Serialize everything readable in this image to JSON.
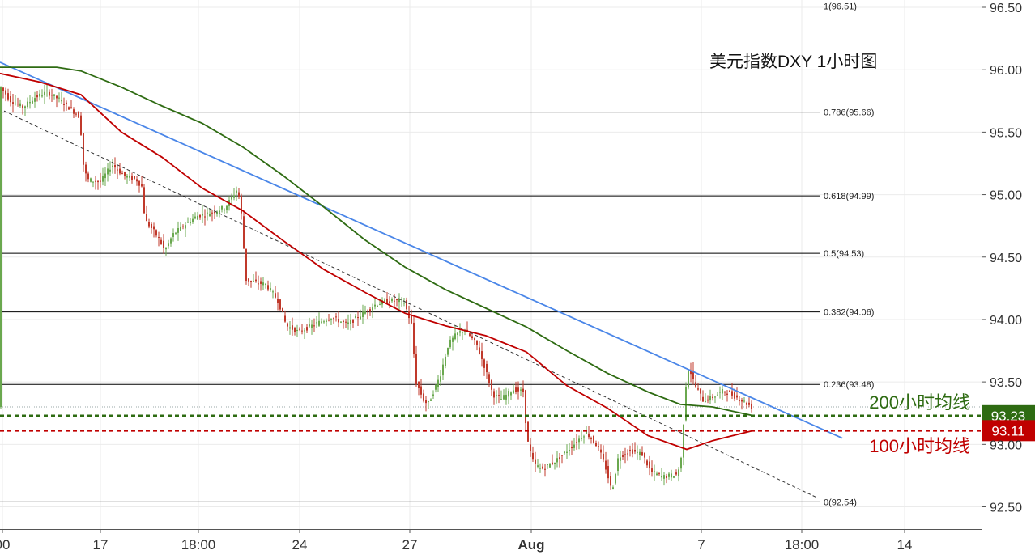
{
  "chart_data": {
    "type": "candlestick",
    "title": "美元指数DXY 1小时图",
    "ylim": [
      92.43,
      96.55
    ],
    "y_ticks": [
      "92.50",
      "93.00",
      "93.50",
      "94.00",
      "94.50",
      "95.00",
      "95.50",
      "96.00",
      "96.50"
    ],
    "x_ticks": [
      "00",
      "17",
      "18:00",
      "24",
      "27",
      "Aug",
      "7",
      "18:00",
      "14"
    ],
    "grid": true,
    "fibonacci_levels": [
      {
        "label": "1(96.51)",
        "value": 96.51
      },
      {
        "label": "0.786(95.66)",
        "value": 95.66
      },
      {
        "label": "0.618(94.99)",
        "value": 94.99
      },
      {
        "label": "0.5(94.53)",
        "value": 94.53
      },
      {
        "label": "0.382(94.06)",
        "value": 94.06
      },
      {
        "label": "0.236(93.48)",
        "value": 93.48
      },
      {
        "label": "0(92.54)",
        "value": 92.54
      }
    ],
    "moving_averages": [
      {
        "name": "200小时均线",
        "price_tag": "93.23",
        "value": 93.23,
        "color": "#2e6b12"
      },
      {
        "name": "100小时均线",
        "price_tag": "93.11",
        "value": 93.11,
        "color": "#c00000"
      }
    ],
    "ma200_path": [
      [
        0,
        96.02
      ],
      [
        70,
        96.02
      ],
      [
        100,
        95.99
      ],
      [
        150,
        95.86
      ],
      [
        200,
        95.71
      ],
      [
        250,
        95.57
      ],
      [
        300,
        95.38
      ],
      [
        350,
        95.15
      ],
      [
        400,
        94.9
      ],
      [
        450,
        94.64
      ],
      [
        500,
        94.42
      ],
      [
        550,
        94.24
      ],
      [
        600,
        94.09
      ],
      [
        650,
        93.94
      ],
      [
        700,
        93.75
      ],
      [
        750,
        93.57
      ],
      [
        800,
        93.42
      ],
      [
        840,
        93.32
      ],
      [
        880,
        93.3
      ],
      [
        930,
        93.23
      ]
    ],
    "ma100_path": [
      [
        0,
        95.97
      ],
      [
        50,
        95.9
      ],
      [
        100,
        95.8
      ],
      [
        150,
        95.5
      ],
      [
        200,
        95.3
      ],
      [
        250,
        95.05
      ],
      [
        300,
        94.87
      ],
      [
        350,
        94.63
      ],
      [
        400,
        94.4
      ],
      [
        450,
        94.22
      ],
      [
        500,
        94.05
      ],
      [
        550,
        93.95
      ],
      [
        600,
        93.87
      ],
      [
        650,
        93.74
      ],
      [
        700,
        93.47
      ],
      [
        750,
        93.29
      ],
      [
        800,
        93.07
      ],
      [
        848,
        92.96
      ],
      [
        880,
        93.03
      ],
      [
        930,
        93.11
      ]
    ],
    "downtrend_line": {
      "start": [
        0,
        96.06
      ],
      "end": [
        1040,
        93.05
      ],
      "color": "#4a86e8"
    },
    "channel_line": {
      "start": [
        5,
        95.67
      ],
      "end": [
        1010,
        92.57
      ],
      "style": "dashed"
    },
    "close_path": [
      [
        0,
        95.88
      ],
      [
        15,
        95.75
      ],
      [
        30,
        95.7
      ],
      [
        45,
        95.78
      ],
      [
        60,
        95.82
      ],
      [
        75,
        95.76
      ],
      [
        90,
        95.68
      ],
      [
        100,
        95.62
      ],
      [
        105,
        95.2
      ],
      [
        110,
        95.12
      ],
      [
        125,
        95.1
      ],
      [
        140,
        95.24
      ],
      [
        155,
        95.15
      ],
      [
        170,
        95.12
      ],
      [
        178,
        95.05
      ],
      [
        180,
        94.8
      ],
      [
        190,
        94.72
      ],
      [
        200,
        94.62
      ],
      [
        205,
        94.55
      ],
      [
        215,
        94.68
      ],
      [
        230,
        94.76
      ],
      [
        245,
        94.83
      ],
      [
        260,
        94.85
      ],
      [
        280,
        94.9
      ],
      [
        295,
        95.05
      ],
      [
        300,
        94.82
      ],
      [
        305,
        94.32
      ],
      [
        315,
        94.3
      ],
      [
        330,
        94.28
      ],
      [
        345,
        94.15
      ],
      [
        355,
        93.95
      ],
      [
        370,
        93.9
      ],
      [
        390,
        93.96
      ],
      [
        410,
        94.02
      ],
      [
        430,
        93.96
      ],
      [
        450,
        94.05
      ],
      [
        465,
        94.12
      ],
      [
        480,
        94.15
      ],
      [
        500,
        94.15
      ],
      [
        510,
        93.95
      ],
      [
        515,
        93.5
      ],
      [
        525,
        93.35
      ],
      [
        530,
        93.32
      ],
      [
        545,
        93.55
      ],
      [
        555,
        93.8
      ],
      [
        565,
        93.88
      ],
      [
        575,
        93.92
      ],
      [
        590,
        93.8
      ],
      [
        600,
        93.62
      ],
      [
        610,
        93.4
      ],
      [
        620,
        93.36
      ],
      [
        635,
        93.44
      ],
      [
        648,
        93.42
      ],
      [
        652,
        93.05
      ],
      [
        660,
        92.85
      ],
      [
        670,
        92.8
      ],
      [
        690,
        92.88
      ],
      [
        710,
        93.0
      ],
      [
        725,
        93.1
      ],
      [
        740,
        92.98
      ],
      [
        750,
        92.8
      ],
      [
        757,
        92.62
      ],
      [
        765,
        92.9
      ],
      [
        780,
        92.95
      ],
      [
        795,
        92.92
      ],
      [
        805,
        92.78
      ],
      [
        820,
        92.74
      ],
      [
        838,
        92.76
      ],
      [
        843,
        92.9
      ],
      [
        848,
        93.45
      ],
      [
        852,
        93.62
      ],
      [
        860,
        93.47
      ],
      [
        870,
        93.35
      ],
      [
        882,
        93.38
      ],
      [
        895,
        93.43
      ],
      [
        905,
        93.4
      ],
      [
        918,
        93.35
      ],
      [
        930,
        93.3
      ]
    ]
  }
}
